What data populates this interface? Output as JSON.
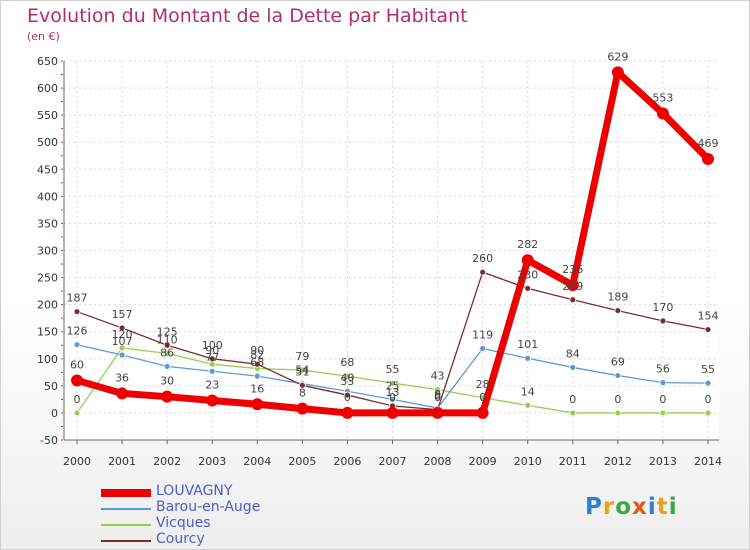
{
  "title": "Evolution du Montant de la Dette par Habitant",
  "subtitle": "(en €)",
  "brand": "Proxiti",
  "chart_data": {
    "type": "line",
    "title": "Evolution du Montant de la Dette par Habitant",
    "subtitle": "(en €)",
    "x": [
      "2000",
      "2001",
      "2002",
      "2003",
      "2004",
      "2005",
      "2006",
      "2007",
      "2008",
      "2009",
      "2010",
      "2011",
      "2012",
      "2013",
      "2014"
    ],
    "ylim": [
      -50,
      650
    ],
    "yticks": [
      -50,
      0,
      50,
      100,
      150,
      200,
      250,
      300,
      350,
      400,
      450,
      500,
      550,
      600,
      650
    ],
    "grid": true,
    "legend": "bottom-left",
    "series": [
      {
        "name": "LOUVAGNY",
        "color": "#ee0000",
        "values": [
          60,
          36,
          30,
          23,
          16,
          8,
          0,
          0,
          0,
          0,
          282,
          236,
          629,
          553,
          469
        ]
      },
      {
        "name": "Barou-en-Auge",
        "color": "#5b9bd5",
        "values": [
          126,
          107,
          86,
          77,
          68,
          54,
          40,
          25,
          9,
          119,
          101,
          84,
          69,
          56,
          55
        ]
      },
      {
        "name": "Vicques",
        "color": "#92d050",
        "values": [
          0,
          120,
          110,
          90,
          82,
          79,
          68,
          55,
          43,
          28,
          14,
          0,
          0,
          0,
          0
        ]
      },
      {
        "name": "Courcy",
        "color": "#7b2c2c",
        "values": [
          187,
          157,
          125,
          100,
          90,
          51,
          33,
          13,
          6,
          260,
          230,
          209,
          189,
          170,
          154
        ]
      }
    ]
  }
}
